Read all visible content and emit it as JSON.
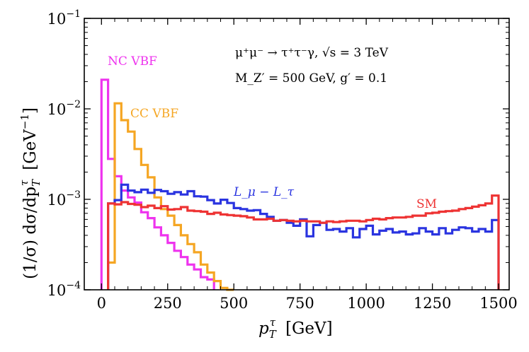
{
  "chart_data": {
    "type": "histogram-step",
    "yscale": "log",
    "xlim": [
      -65,
      1540
    ],
    "ylim": [
      0.0001,
      0.1
    ],
    "xticks": [
      0,
      250,
      500,
      750,
      1000,
      1250,
      1500
    ],
    "xtick_labels": [
      "0",
      "250",
      "500",
      "750",
      "1000",
      "1250",
      "1500"
    ],
    "yticks": [
      0.0001,
      0.001,
      0.01,
      0.1
    ],
    "ytick_labels": [
      {
        "base": "10",
        "exp": "−4"
      },
      {
        "base": "10",
        "exp": "−3"
      },
      {
        "base": "10",
        "exp": "−2"
      },
      {
        "base": "10",
        "exp": "−1"
      }
    ],
    "xlabel": {
      "main": "p",
      "sub": "T",
      "sup": "τ",
      "unit": "[GeV]"
    },
    "ylabel": {
      "pre": "(1/σ)  dσ/dp",
      "sub": "T",
      "sup": "τ",
      "unit_pre": "[GeV",
      "unit_sup": "−1",
      "unit_post": "]"
    },
    "annotations": [
      "μ⁺μ⁻ → τ⁺τ⁻γ, √s = 3 TeV",
      "M_Z′ = 500 GeV, g′ = 0.1"
    ],
    "series": [
      {
        "name": "NC VBF",
        "color": "#ee33ee",
        "x_edges": [
          0,
          25,
          50,
          75,
          100,
          125,
          150,
          175,
          200,
          225,
          250,
          275,
          300,
          325,
          350,
          375,
          400,
          425
        ],
        "values": [
          0.021,
          0.0028,
          0.0018,
          0.00125,
          0.00105,
          0.00092,
          0.00072,
          0.00062,
          0.00049,
          0.0004,
          0.00033,
          0.00027,
          0.00023,
          0.00019,
          0.000168,
          0.000138,
          0.00013
        ]
      },
      {
        "name": "CC VBF",
        "color": "#f5a623",
        "x_edges": [
          25,
          50,
          75,
          100,
          125,
          150,
          175,
          200,
          225,
          250,
          275,
          300,
          325,
          350,
          375,
          400,
          425,
          450,
          475,
          500
        ],
        "values": [
          0.0002,
          0.0115,
          0.0075,
          0.0056,
          0.0036,
          0.0024,
          0.00175,
          0.00105,
          0.00078,
          0.00066,
          0.00052,
          0.0004,
          0.00032,
          0.00026,
          0.00019,
          0.000155,
          0.000125,
          0.000105,
          0.0001
        ]
      },
      {
        "name": "L_μ − L_τ",
        "color": "#2a34e0",
        "x_edges": [
          25,
          50,
          75,
          100,
          125,
          150,
          175,
          200,
          225,
          250,
          275,
          300,
          325,
          350,
          375,
          400,
          425,
          450,
          475,
          500,
          525,
          550,
          575,
          600,
          625,
          650,
          675,
          700,
          725,
          750,
          775,
          800,
          825,
          850,
          875,
          900,
          925,
          950,
          975,
          1000,
          1025,
          1050,
          1075,
          1100,
          1125,
          1150,
          1175,
          1200,
          1225,
          1250,
          1275,
          1300,
          1325,
          1350,
          1375,
          1400,
          1425,
          1450,
          1475,
          1500
        ],
        "values": [
          0.0009,
          0.00098,
          0.00145,
          0.00125,
          0.0012,
          0.00128,
          0.00118,
          0.00127,
          0.00123,
          0.00115,
          0.0012,
          0.00113,
          0.00123,
          0.00108,
          0.00107,
          0.00098,
          0.0009,
          0.00099,
          0.00091,
          0.0008,
          0.00078,
          0.00075,
          0.00076,
          0.00069,
          0.00064,
          0.00058,
          0.00059,
          0.00055,
          0.00051,
          0.0006,
          0.00039,
          0.00052,
          0.00055,
          0.00046,
          0.00047,
          0.00044,
          0.00048,
          0.00038,
          0.00047,
          0.00051,
          0.00041,
          0.00045,
          0.00047,
          0.00043,
          0.00044,
          0.00041,
          0.00042,
          0.00048,
          0.00044,
          0.00041,
          0.00048,
          0.00042,
          0.00046,
          0.00049,
          0.00048,
          0.00044,
          0.00047,
          0.00044,
          0.00059
        ]
      },
      {
        "name": "SM",
        "color": "#ee3333",
        "x_edges": [
          25,
          50,
          75,
          100,
          125,
          150,
          175,
          200,
          225,
          250,
          275,
          300,
          325,
          350,
          375,
          400,
          425,
          450,
          475,
          500,
          525,
          550,
          575,
          600,
          625,
          650,
          675,
          700,
          725,
          750,
          775,
          800,
          825,
          850,
          875,
          900,
          925,
          950,
          975,
          1000,
          1025,
          1050,
          1075,
          1100,
          1125,
          1150,
          1175,
          1200,
          1225,
          1250,
          1275,
          1300,
          1325,
          1350,
          1375,
          1400,
          1425,
          1450,
          1475,
          1500
        ],
        "values": [
          0.0009,
          0.00088,
          0.00093,
          0.00089,
          0.00087,
          0.00082,
          0.00085,
          0.0008,
          0.00084,
          0.00077,
          0.00078,
          0.00082,
          0.00075,
          0.00074,
          0.00073,
          0.00069,
          0.00071,
          0.00068,
          0.00067,
          0.00066,
          0.00065,
          0.00063,
          0.0006,
          0.0006,
          0.00061,
          0.00058,
          0.00059,
          0.00058,
          0.00057,
          0.00058,
          0.00057,
          0.00057,
          0.00055,
          0.00057,
          0.00056,
          0.00057,
          0.00058,
          0.00058,
          0.00057,
          0.00059,
          0.00061,
          0.0006,
          0.00062,
          0.00063,
          0.00063,
          0.00064,
          0.00066,
          0.00066,
          0.0007,
          0.00071,
          0.00073,
          0.00074,
          0.00075,
          0.00078,
          0.0008,
          0.00083,
          0.00086,
          0.0009,
          0.0011
        ]
      }
    ]
  }
}
